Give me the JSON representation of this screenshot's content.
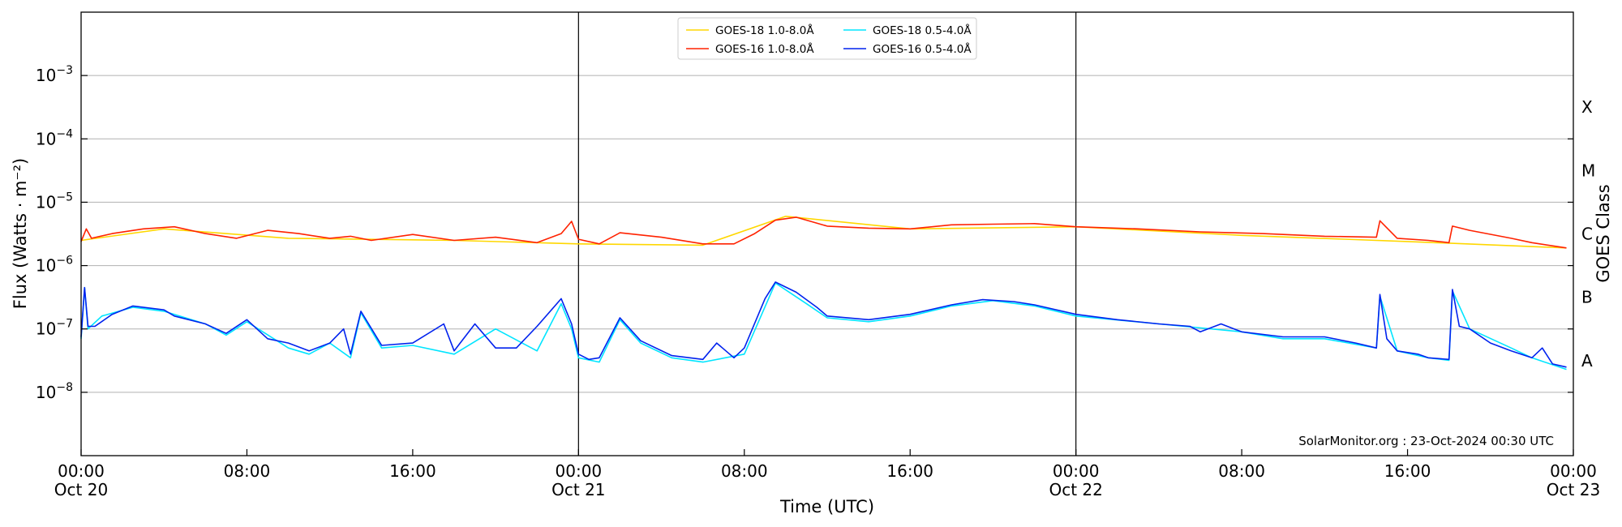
{
  "chart_data": {
    "type": "line",
    "xlabel": "Time (UTC)",
    "ylabel": "Flux (Watts · m⁻²)",
    "y2label": "GOES Class",
    "y_scale": "log",
    "ylim": [
      1e-09,
      0.01
    ],
    "xlim": [
      "2024-10-20T00:00",
      "2024-10-23T00:00"
    ],
    "grid": "horizontal",
    "legend_position": "top-center",
    "credit": "SolarMonitor.org : 23-Oct-2024 00:30 UTC",
    "x_ticks": [
      {
        "t": "2024-10-20T00:00",
        "time": "00:00",
        "date": "Oct 20"
      },
      {
        "t": "2024-10-20T08:00",
        "time": "08:00",
        "date": ""
      },
      {
        "t": "2024-10-20T16:00",
        "time": "16:00",
        "date": ""
      },
      {
        "t": "2024-10-21T00:00",
        "time": "00:00",
        "date": "Oct 21"
      },
      {
        "t": "2024-10-21T08:00",
        "time": "08:00",
        "date": ""
      },
      {
        "t": "2024-10-21T16:00",
        "time": "16:00",
        "date": ""
      },
      {
        "t": "2024-10-22T00:00",
        "time": "00:00",
        "date": "Oct 22"
      },
      {
        "t": "2024-10-22T08:00",
        "time": "08:00",
        "date": ""
      },
      {
        "t": "2024-10-22T16:00",
        "time": "16:00",
        "date": ""
      },
      {
        "t": "2024-10-23T00:00",
        "time": "00:00",
        "date": "Oct 23"
      }
    ],
    "y_ticks": [
      {
        "v": 1e-08,
        "base": "10",
        "exp": "−8"
      },
      {
        "v": 1e-07,
        "base": "10",
        "exp": "−7"
      },
      {
        "v": 1e-06,
        "base": "10",
        "exp": "−6"
      },
      {
        "v": 1e-05,
        "base": "10",
        "exp": "−5"
      },
      {
        "v": 0.0001,
        "base": "10",
        "exp": "−4"
      },
      {
        "v": 0.001,
        "base": "10",
        "exp": "−3"
      }
    ],
    "goes_classes": [
      {
        "label": "A",
        "v": 1e-08
      },
      {
        "label": "B",
        "v": 1e-07
      },
      {
        "label": "C",
        "v": 1e-06
      },
      {
        "label": "M",
        "v": 1e-05
      },
      {
        "label": "X",
        "v": 0.0001
      }
    ],
    "day_boundaries": [
      "2024-10-21T00:00",
      "2024-10-22T00:00"
    ],
    "series": [
      {
        "name": "GOES-18 1.0-8.0Å",
        "color": "#ffd700",
        "x": [
          "2024-10-20T00:00",
          "2024-10-20T04:00",
          "2024-10-20T10:00",
          "2024-10-20T18:00",
          "2024-10-21T00:00",
          "2024-10-21T06:00",
          "2024-10-21T10:00",
          "2024-10-21T16:00",
          "2024-10-22T00:00",
          "2024-10-22T08:00",
          "2024-10-22T16:00",
          "2024-10-22T23:40"
        ],
        "y": [
          2.5e-06,
          3.8e-06,
          2.7e-06,
          2.5e-06,
          2.2e-06,
          2.1e-06,
          6e-06,
          3.8e-06,
          4.1e-06,
          3e-06,
          2.4e-06,
          1.9e-06
        ]
      },
      {
        "name": "GOES-16 1.0-8.0Å",
        "color": "#ff2200",
        "x": [
          "2024-10-20T00:00",
          "2024-10-20T00:15",
          "2024-10-20T00:30",
          "2024-10-20T01:30",
          "2024-10-20T03:00",
          "2024-10-20T04:30",
          "2024-10-20T06:00",
          "2024-10-20T07:30",
          "2024-10-20T09:00",
          "2024-10-20T10:30",
          "2024-10-20T12:00",
          "2024-10-20T13:00",
          "2024-10-20T14:00",
          "2024-10-20T16:00",
          "2024-10-20T18:00",
          "2024-10-20T20:00",
          "2024-10-20T22:00",
          "2024-10-20T23:10",
          "2024-10-20T23:40",
          "2024-10-21T00:00",
          "2024-10-21T01:00",
          "2024-10-21T02:00",
          "2024-10-21T04:00",
          "2024-10-21T06:00",
          "2024-10-21T07:30",
          "2024-10-21T08:30",
          "2024-10-21T09:30",
          "2024-10-21T10:30",
          "2024-10-21T12:00",
          "2024-10-21T14:00",
          "2024-10-21T16:00",
          "2024-10-21T18:00",
          "2024-10-21T20:00",
          "2024-10-21T22:00",
          "2024-10-22T00:00",
          "2024-10-22T03:00",
          "2024-10-22T06:00",
          "2024-10-22T09:00",
          "2024-10-22T12:00",
          "2024-10-22T14:30",
          "2024-10-22T14:40",
          "2024-10-22T15:30",
          "2024-10-22T17:00",
          "2024-10-22T18:00",
          "2024-10-22T18:10",
          "2024-10-22T19:00",
          "2024-10-22T21:00",
          "2024-10-22T22:00",
          "2024-10-22T23:40"
        ],
        "y": [
          2.4e-06,
          3.8e-06,
          2.7e-06,
          3.2e-06,
          3.8e-06,
          4.1e-06,
          3.2e-06,
          2.7e-06,
          3.6e-06,
          3.2e-06,
          2.7e-06,
          2.9e-06,
          2.5e-06,
          3.1e-06,
          2.5e-06,
          2.8e-06,
          2.3e-06,
          3.2e-06,
          5e-06,
          2.6e-06,
          2.2e-06,
          3.3e-06,
          2.8e-06,
          2.2e-06,
          2.2e-06,
          3.2e-06,
          5.2e-06,
          5.8e-06,
          4.2e-06,
          3.9e-06,
          3.8e-06,
          4.4e-06,
          4.5e-06,
          4.6e-06,
          4.1e-06,
          3.8e-06,
          3.4e-06,
          3.2e-06,
          2.9e-06,
          2.8e-06,
          5.1e-06,
          2.7e-06,
          2.5e-06,
          2.3e-06,
          4.2e-06,
          3.6e-06,
          2.7e-06,
          2.3e-06,
          1.9e-06
        ]
      },
      {
        "name": "GOES-18 0.5-4.0Å",
        "color": "#00e5ff",
        "x": [
          "2024-10-20T00:00",
          "2024-10-20T00:10",
          "2024-10-20T00:20",
          "2024-10-20T01:00",
          "2024-10-20T02:30",
          "2024-10-20T04:00",
          "2024-10-20T06:00",
          "2024-10-20T07:00",
          "2024-10-20T08:00",
          "2024-10-20T10:00",
          "2024-10-20T11:00",
          "2024-10-20T12:00",
          "2024-10-20T13:00",
          "2024-10-20T13:30",
          "2024-10-20T14:30",
          "2024-10-20T16:00",
          "2024-10-20T18:00",
          "2024-10-20T20:00",
          "2024-10-20T22:00",
          "2024-10-20T23:10",
          "2024-10-20T23:40",
          "2024-10-21T00:00",
          "2024-10-21T01:00",
          "2024-10-21T02:00",
          "2024-10-21T03:00",
          "2024-10-21T04:30",
          "2024-10-21T06:00",
          "2024-10-21T08:00",
          "2024-10-21T09:30",
          "2024-10-21T11:00",
          "2024-10-21T12:00",
          "2024-10-21T14:00",
          "2024-10-21T16:00",
          "2024-10-21T18:00",
          "2024-10-21T20:00",
          "2024-10-21T22:00",
          "2024-10-22T00:00",
          "2024-10-22T04:00",
          "2024-10-22T08:00",
          "2024-10-22T10:00",
          "2024-10-22T12:00",
          "2024-10-22T14:30",
          "2024-10-22T14:40",
          "2024-10-22T15:30",
          "2024-10-22T17:00",
          "2024-10-22T18:00",
          "2024-10-22T18:10",
          "2024-10-22T19:00",
          "2024-10-22T21:00",
          "2024-10-22T22:00",
          "2024-10-22T23:40"
        ],
        "y": [
          7e-08,
          4.5e-07,
          1e-07,
          1.6e-07,
          2.2e-07,
          1.9e-07,
          1.2e-07,
          8e-08,
          1.3e-07,
          5e-08,
          4e-08,
          6e-08,
          3.5e-08,
          1.8e-07,
          5e-08,
          5.5e-08,
          4e-08,
          1e-07,
          4.5e-08,
          2.5e-07,
          1e-07,
          3.5e-08,
          3e-08,
          1.4e-07,
          6e-08,
          3.5e-08,
          3e-08,
          4e-08,
          5.3e-07,
          2.5e-07,
          1.5e-07,
          1.3e-07,
          1.6e-07,
          2.3e-07,
          2.8e-07,
          2.3e-07,
          1.6e-07,
          1.2e-07,
          9e-08,
          7e-08,
          7e-08,
          5e-08,
          3.3e-07,
          4.5e-08,
          3.5e-08,
          3.2e-08,
          4e-07,
          1e-07,
          5e-08,
          3.5e-08,
          2.3e-08
        ]
      },
      {
        "name": "GOES-16 0.5-4.0Å",
        "color": "#0022ee",
        "x": [
          "2024-10-20T00:00",
          "2024-10-20T00:10",
          "2024-10-20T00:20",
          "2024-10-20T00:40",
          "2024-10-20T01:30",
          "2024-10-20T02:30",
          "2024-10-20T04:00",
          "2024-10-20T04:30",
          "2024-10-20T06:00",
          "2024-10-20T07:00",
          "2024-10-20T08:00",
          "2024-10-20T09:00",
          "2024-10-20T10:00",
          "2024-10-20T11:00",
          "2024-10-20T12:00",
          "2024-10-20T12:40",
          "2024-10-20T13:00",
          "2024-10-20T13:30",
          "2024-10-20T14:30",
          "2024-10-20T16:00",
          "2024-10-20T17:30",
          "2024-10-20T18:00",
          "2024-10-20T19:00",
          "2024-10-20T20:00",
          "2024-10-20T21:00",
          "2024-10-20T22:00",
          "2024-10-20T23:10",
          "2024-10-20T23:40",
          "2024-10-21T00:00",
          "2024-10-21T00:30",
          "2024-10-21T01:00",
          "2024-10-21T02:00",
          "2024-10-21T03:00",
          "2024-10-21T04:30",
          "2024-10-21T06:00",
          "2024-10-21T06:40",
          "2024-10-21T07:30",
          "2024-10-21T08:00",
          "2024-10-21T09:00",
          "2024-10-21T09:30",
          "2024-10-21T10:30",
          "2024-10-21T11:30",
          "2024-10-21T12:00",
          "2024-10-21T14:00",
          "2024-10-21T16:00",
          "2024-10-21T18:00",
          "2024-10-21T19:30",
          "2024-10-21T21:00",
          "2024-10-21T22:00",
          "2024-10-22T00:00",
          "2024-10-22T02:00",
          "2024-10-22T04:00",
          "2024-10-22T05:30",
          "2024-10-22T06:00",
          "2024-10-22T07:00",
          "2024-10-22T08:00",
          "2024-10-22T10:00",
          "2024-10-22T12:00",
          "2024-10-22T13:30",
          "2024-10-22T14:30",
          "2024-10-22T14:40",
          "2024-10-22T15:00",
          "2024-10-22T15:30",
          "2024-10-22T16:30",
          "2024-10-22T17:00",
          "2024-10-22T18:00",
          "2024-10-22T18:10",
          "2024-10-22T18:30",
          "2024-10-22T19:00",
          "2024-10-22T20:00",
          "2024-10-22T21:00",
          "2024-10-22T22:00",
          "2024-10-22T22:30",
          "2024-10-22T23:00",
          "2024-10-22T23:40"
        ],
        "y": [
          7.5e-08,
          4.5e-07,
          1.1e-07,
          1.1e-07,
          1.7e-07,
          2.3e-07,
          2e-07,
          1.6e-07,
          1.2e-07,
          8.5e-08,
          1.4e-07,
          7e-08,
          6e-08,
          4.5e-08,
          6e-08,
          1e-07,
          4e-08,
          1.9e-07,
          5.5e-08,
          6e-08,
          1.2e-07,
          4.5e-08,
          1.2e-07,
          5e-08,
          5e-08,
          1.1e-07,
          3e-07,
          1.2e-07,
          4e-08,
          3.3e-08,
          3.5e-08,
          1.5e-07,
          6.5e-08,
          3.8e-08,
          3.3e-08,
          6e-08,
          3.5e-08,
          5e-08,
          3e-07,
          5.5e-07,
          3.8e-07,
          2.2e-07,
          1.6e-07,
          1.4e-07,
          1.7e-07,
          2.4e-07,
          2.9e-07,
          2.7e-07,
          2.4e-07,
          1.7e-07,
          1.4e-07,
          1.2e-07,
          1.1e-07,
          9e-08,
          1.2e-07,
          9e-08,
          7.5e-08,
          7.5e-08,
          6e-08,
          5e-08,
          3.5e-07,
          7e-08,
          4.5e-08,
          4e-08,
          3.5e-08,
          3.3e-08,
          4.2e-07,
          1.1e-07,
          1e-07,
          6e-08,
          4.5e-08,
          3.5e-08,
          5e-08,
          2.8e-08,
          2.5e-08
        ]
      }
    ]
  }
}
